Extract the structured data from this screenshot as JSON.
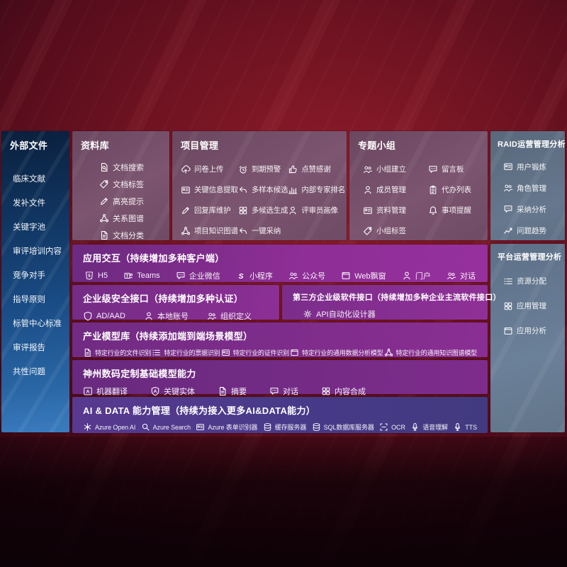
{
  "sidebar": {
    "title": "外部文件",
    "items": [
      "临床文献",
      "发补文件",
      "关键字池",
      "审评培训内容",
      "竞争对手",
      "指导原则",
      "标管中心标准",
      "审评报告",
      "共性问题"
    ]
  },
  "repository": {
    "title": "资料库",
    "items": [
      {
        "icon": "doc-search-icon",
        "label": "文档搜索"
      },
      {
        "icon": "doc-tag-icon",
        "label": "文档标签"
      },
      {
        "icon": "highlight-icon",
        "label": "高亮提示"
      },
      {
        "icon": "relation-graph-icon",
        "label": "关系图谱"
      },
      {
        "icon": "doc-classify-icon",
        "label": "文档分类"
      }
    ]
  },
  "project": {
    "title": "项目管理",
    "columns": [
      [
        {
          "icon": "cloud-upload-icon",
          "label": "问卷上传"
        },
        {
          "icon": "info-extract-icon",
          "label": "关键信息提取"
        },
        {
          "icon": "edit-icon",
          "label": "回复库维护"
        },
        {
          "icon": "knowledge-graph-icon",
          "label": "项目知识图谱"
        }
      ],
      [
        {
          "icon": "alarm-icon",
          "label": "到期预警"
        },
        {
          "icon": "reply-icon",
          "label": "多样本候选"
        },
        {
          "icon": "multi-generate-icon",
          "label": "多候选生成"
        },
        {
          "icon": "adopt-icon",
          "label": "一键采纳"
        }
      ],
      [
        {
          "icon": "thumbs-up-icon",
          "label": "点赞感谢"
        },
        {
          "icon": "ranking-icon",
          "label": "内部专家排名"
        },
        {
          "icon": "reviewer-portrait-icon",
          "label": "评审员画像"
        }
      ]
    ]
  },
  "groups": {
    "title": "专题小组",
    "columns": [
      [
        {
          "icon": "group-create-icon",
          "label": "小组建立"
        },
        {
          "icon": "member-icon",
          "label": "成员管理"
        },
        {
          "icon": "album-icon",
          "label": "资料管理"
        },
        {
          "icon": "tag-icon",
          "label": "小组标签"
        }
      ],
      [
        {
          "icon": "bbs-icon",
          "label": "留言板"
        },
        {
          "icon": "todo-list-icon",
          "label": "代办列表"
        },
        {
          "icon": "bell-icon",
          "label": "事项提醒"
        }
      ]
    ]
  },
  "raid": {
    "title": "RAID运营管理分析",
    "items": [
      {
        "icon": "id-card-icon",
        "label": "用户锻炼"
      },
      {
        "icon": "roles-icon",
        "label": "角色管理"
      },
      {
        "icon": "adoption-analysis-icon",
        "label": "采纳分析"
      },
      {
        "icon": "trend-icon",
        "label": "问题趋势"
      }
    ]
  },
  "platform": {
    "title": "平台运营管理分析",
    "items": [
      {
        "icon": "allocation-list-icon",
        "label": "资源分配"
      },
      {
        "icon": "apps-grid-icon",
        "label": "应用管理"
      },
      {
        "icon": "app-analysis-icon",
        "label": "应用分析"
      }
    ]
  },
  "interaction": {
    "title": "应用交互（持续增加多种客户端）",
    "items": [
      {
        "icon": "html5-icon",
        "label": "H5"
      },
      {
        "icon": "teams-icon",
        "label": "Teams"
      },
      {
        "icon": "wecom-icon",
        "label": "企业微信"
      },
      {
        "icon": "miniprogram-icon",
        "label": "小程序"
      },
      {
        "icon": "official-account-icon",
        "label": "公众号"
      },
      {
        "icon": "web-popup-icon",
        "label": "Web飘窗"
      },
      {
        "icon": "portal-icon",
        "label": "门户"
      },
      {
        "icon": "dialog-icon",
        "label": "对话"
      }
    ]
  },
  "security": {
    "title": "企业级安全接口（持续增加多种认证）",
    "items": [
      {
        "icon": "ad-shield-icon",
        "label": "AD/AAD"
      },
      {
        "icon": "local-account-icon",
        "label": "本地账号"
      },
      {
        "icon": "org-icon",
        "label": "组织定义"
      }
    ]
  },
  "thirdparty": {
    "title": "第三方企业级软件接口（持续增加多种企业主流软件接口）",
    "items": [
      {
        "icon": "api-gear-icon",
        "label": "API自动化设计器"
      }
    ]
  },
  "industry": {
    "title": "产业模型库（持续添加端到端场景模型）",
    "items": [
      {
        "icon": "file-recog-icon",
        "label": "特定行业的文件识别"
      },
      {
        "icon": "invoice-recog-icon",
        "label": "特定行业的票据识别"
      },
      {
        "icon": "idcard-recog-icon",
        "label": "特定行业的证件识别"
      },
      {
        "icon": "data-analysis-model-icon",
        "label": "特定行业的通用数据分析模型"
      },
      {
        "icon": "knowledge-graph-model-icon",
        "label": "特定行业的通用知识图谱模型"
      }
    ]
  },
  "base_models": {
    "title": "神州数码定制基础模型能力",
    "items": [
      {
        "icon": "translate-icon",
        "label": "机器翻译"
      },
      {
        "icon": "entity-icon",
        "label": "关键实体"
      },
      {
        "icon": "summary-icon",
        "label": "摘要"
      },
      {
        "icon": "chat-icon",
        "label": "对话"
      },
      {
        "icon": "compose-icon",
        "label": "内容合成"
      }
    ]
  },
  "ai_data": {
    "title": "AI & DATA 能力管理（持续为接入更多AI&DATA能力）",
    "items": [
      {
        "icon": "openai-icon",
        "label": "Azure Open AI"
      },
      {
        "icon": "azure-search-icon",
        "label": "Azure Search"
      },
      {
        "icon": "form-recognizer-icon",
        "label": "Azure 表单识别器"
      },
      {
        "icon": "cache-server-icon",
        "label": "缓存服务器"
      },
      {
        "icon": "sql-db-icon",
        "label": "SQL数据库服务器"
      },
      {
        "icon": "ocr-icon",
        "label": "OCR"
      },
      {
        "icon": "speech-icon",
        "label": "语音理解"
      },
      {
        "icon": "tts-icon",
        "label": "TTS"
      }
    ]
  },
  "colors": {
    "background_red": "#7a1322",
    "sidebar_blue": "#1d4e87",
    "panel_slate": "#66788e",
    "box_mauve": "#7c5570",
    "row_purple": "#8a2d92",
    "row_indigo": "#473a89",
    "text": "#ffffff"
  }
}
